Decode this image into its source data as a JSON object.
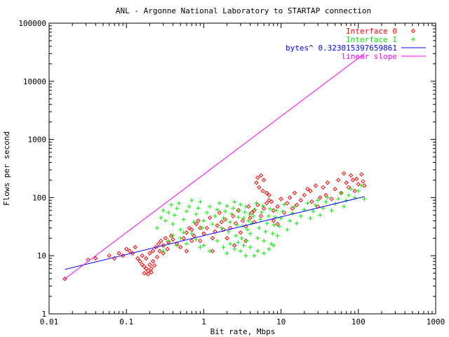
{
  "chart_data": {
    "type": "scatter",
    "title": "ANL - Argonne National Laboratory to STARTAP connection",
    "xlabel": "Bit rate, Mbps",
    "ylabel": "Flows per second",
    "x_scale": "log",
    "y_scale": "log",
    "xlim": [
      0.01,
      1000
    ],
    "ylim": [
      1,
      100000
    ],
    "x_ticks": [
      {
        "v": 0.01,
        "label": "0.01"
      },
      {
        "v": 0.1,
        "label": "0.1"
      },
      {
        "v": 1,
        "label": "1"
      },
      {
        "v": 10,
        "label": "10"
      },
      {
        "v": 100,
        "label": "100"
      },
      {
        "v": 1000,
        "label": "1000"
      }
    ],
    "y_ticks": [
      {
        "v": 1,
        "label": "1"
      },
      {
        "v": 10,
        "label": "10"
      },
      {
        "v": 100,
        "label": "100"
      },
      {
        "v": 1000,
        "label": "1000"
      },
      {
        "v": 10000,
        "label": "10000"
      },
      {
        "v": 100000,
        "label": "100000"
      }
    ],
    "grid": false,
    "legend_position": "top-right",
    "series": [
      {
        "name": "Interface 0",
        "kind": "points",
        "marker": "diamond",
        "color": "#ff0000",
        "points": [
          [
            0.016,
            4
          ],
          [
            0.032,
            8.5
          ],
          [
            0.04,
            9
          ],
          [
            0.06,
            10
          ],
          [
            0.07,
            9
          ],
          [
            0.08,
            11
          ],
          [
            0.09,
            10
          ],
          [
            0.1,
            13
          ],
          [
            0.11,
            12
          ],
          [
            0.12,
            11
          ],
          [
            0.13,
            14
          ],
          [
            0.14,
            9
          ],
          [
            0.15,
            8
          ],
          [
            0.16,
            7
          ],
          [
            0.17,
            6.5
          ],
          [
            0.18,
            6
          ],
          [
            0.19,
            5.5
          ],
          [
            0.2,
            7
          ],
          [
            0.21,
            6
          ],
          [
            0.22,
            8
          ],
          [
            0.16,
            10
          ],
          [
            0.18,
            9
          ],
          [
            0.2,
            11
          ],
          [
            0.22,
            12
          ],
          [
            0.24,
            14
          ],
          [
            0.26,
            16
          ],
          [
            0.28,
            18
          ],
          [
            0.3,
            15
          ],
          [
            0.32,
            20
          ],
          [
            0.35,
            17
          ],
          [
            0.17,
            5
          ],
          [
            0.19,
            4.8
          ],
          [
            0.21,
            5.2
          ],
          [
            0.23,
            6.8
          ],
          [
            0.25,
            9.5
          ],
          [
            0.27,
            12
          ],
          [
            0.3,
            11
          ],
          [
            0.34,
            13
          ],
          [
            0.38,
            22
          ],
          [
            0.4,
            19
          ],
          [
            0.45,
            16
          ],
          [
            0.5,
            14
          ],
          [
            0.55,
            20
          ],
          [
            0.6,
            25
          ],
          [
            0.65,
            30
          ],
          [
            0.7,
            28
          ],
          [
            0.75,
            22
          ],
          [
            0.8,
            35
          ],
          [
            0.85,
            40
          ],
          [
            0.9,
            18
          ],
          [
            1,
            24
          ],
          [
            1.1,
            30
          ],
          [
            1.2,
            45
          ],
          [
            1.3,
            20
          ],
          [
            1.4,
            26
          ],
          [
            1.5,
            33
          ],
          [
            1.6,
            55
          ],
          [
            1.7,
            38
          ],
          [
            1.8,
            28
          ],
          [
            1.9,
            42
          ],
          [
            2,
            20
          ],
          [
            2.2,
            30
          ],
          [
            2.4,
            48
          ],
          [
            2.6,
            36
          ],
          [
            2.8,
            60
          ],
          [
            3,
            25
          ],
          [
            3.2,
            40
          ],
          [
            3.5,
            32
          ],
          [
            3.8,
            70
          ],
          [
            4,
            45
          ],
          [
            4.2,
            55
          ],
          [
            4.5,
            38
          ],
          [
            4.8,
            180
          ],
          [
            5,
            220
          ],
          [
            5.2,
            150
          ],
          [
            5.5,
            240
          ],
          [
            5.8,
            130
          ],
          [
            6,
            200
          ],
          [
            6.5,
            120
          ],
          [
            7,
            90
          ],
          [
            4.5,
            60
          ],
          [
            5,
            75
          ],
          [
            5.5,
            48
          ],
          [
            6,
            65
          ],
          [
            6.5,
            80
          ],
          [
            7,
            110
          ],
          [
            7.5,
            85
          ],
          [
            8,
            60
          ],
          [
            9,
            70
          ],
          [
            10,
            95
          ],
          [
            11,
            55
          ],
          [
            12,
            80
          ],
          [
            13,
            100
          ],
          [
            14,
            65
          ],
          [
            15,
            120
          ],
          [
            16,
            75
          ],
          [
            18,
            90
          ],
          [
            20,
            110
          ],
          [
            22,
            140
          ],
          [
            24,
            130
          ],
          [
            25,
            85
          ],
          [
            28,
            160
          ],
          [
            30,
            70
          ],
          [
            32,
            100
          ],
          [
            35,
            150
          ],
          [
            38,
            110
          ],
          [
            40,
            180
          ],
          [
            45,
            95
          ],
          [
            50,
            140
          ],
          [
            55,
            200
          ],
          [
            60,
            120
          ],
          [
            65,
            260
          ],
          [
            70,
            180
          ],
          [
            75,
            150
          ],
          [
            80,
            240
          ],
          [
            85,
            200
          ],
          [
            90,
            130
          ],
          [
            95,
            210
          ],
          [
            100,
            170
          ],
          [
            110,
            250
          ],
          [
            115,
            190
          ],
          [
            120,
            160
          ],
          [
            8,
            40
          ],
          [
            9,
            35
          ],
          [
            2.5,
            15
          ],
          [
            3.5,
            18
          ],
          [
            1.3,
            12
          ],
          [
            0.9,
            30
          ],
          [
            0.7,
            18
          ],
          [
            0.6,
            12
          ]
        ]
      },
      {
        "name": "Interface 1",
        "kind": "points",
        "marker": "plus",
        "color": "#00ee00",
        "points": [
          [
            0.25,
            30
          ],
          [
            0.28,
            45
          ],
          [
            0.3,
            60
          ],
          [
            0.32,
            40
          ],
          [
            0.35,
            55
          ],
          [
            0.38,
            75
          ],
          [
            0.4,
            35
          ],
          [
            0.42,
            50
          ],
          [
            0.45,
            65
          ],
          [
            0.48,
            80
          ],
          [
            0.5,
            28
          ],
          [
            0.55,
            42
          ],
          [
            0.6,
            58
          ],
          [
            0.65,
            70
          ],
          [
            0.7,
            90
          ],
          [
            0.75,
            38
          ],
          [
            0.8,
            52
          ],
          [
            0.85,
            66
          ],
          [
            0.9,
            85
          ],
          [
            0.95,
            30
          ],
          [
            0.3,
            12
          ],
          [
            0.35,
            18
          ],
          [
            0.4,
            22
          ],
          [
            0.45,
            15
          ],
          [
            0.5,
            20
          ],
          [
            0.55,
            25
          ],
          [
            0.6,
            16
          ],
          [
            0.7,
            24
          ],
          [
            0.8,
            19
          ],
          [
            0.9,
            14
          ],
          [
            1,
            40
          ],
          [
            1.1,
            55
          ],
          [
            1.2,
            70
          ],
          [
            1.3,
            35
          ],
          [
            1.4,
            48
          ],
          [
            1.5,
            62
          ],
          [
            1.6,
            80
          ],
          [
            1.7,
            30
          ],
          [
            1.8,
            44
          ],
          [
            1.9,
            58
          ],
          [
            2,
            72
          ],
          [
            2.1,
            26
          ],
          [
            2.2,
            38
          ],
          [
            2.3,
            52
          ],
          [
            2.4,
            66
          ],
          [
            2.5,
            84
          ],
          [
            2.6,
            22
          ],
          [
            2.7,
            34
          ],
          [
            2.8,
            46
          ],
          [
            2.9,
            60
          ],
          [
            3,
            76
          ],
          [
            3.1,
            20
          ],
          [
            3.2,
            32
          ],
          [
            3.3,
            44
          ],
          [
            3.4,
            56
          ],
          [
            3.5,
            70
          ],
          [
            3.6,
            18
          ],
          [
            3.7,
            28
          ],
          [
            3.8,
            40
          ],
          [
            3.9,
            52
          ],
          [
            1,
            15
          ],
          [
            1.2,
            12
          ],
          [
            1.5,
            18
          ],
          [
            1.8,
            14
          ],
          [
            2,
            11
          ],
          [
            2.2,
            16
          ],
          [
            2.5,
            13
          ],
          [
            2.8,
            17
          ],
          [
            3,
            12
          ],
          [
            3.3,
            15
          ],
          [
            4,
            24
          ],
          [
            4.2,
            36
          ],
          [
            4.4,
            48
          ],
          [
            4.6,
            62
          ],
          [
            4.8,
            80
          ],
          [
            5,
            20
          ],
          [
            5.2,
            30
          ],
          [
            5.4,
            42
          ],
          [
            5.6,
            56
          ],
          [
            5.8,
            72
          ],
          [
            6,
            18
          ],
          [
            6.3,
            26
          ],
          [
            6.6,
            36
          ],
          [
            6.9,
            48
          ],
          [
            7.2,
            64
          ],
          [
            7.5,
            16
          ],
          [
            7.8,
            24
          ],
          [
            8.1,
            34
          ],
          [
            8.4,
            46
          ],
          [
            8.7,
            60
          ],
          [
            9,
            22
          ],
          [
            9.5,
            32
          ],
          [
            10,
            44
          ],
          [
            10.5,
            58
          ],
          [
            11,
            76
          ],
          [
            12,
            28
          ],
          [
            13,
            40
          ],
          [
            14,
            54
          ],
          [
            15,
            70
          ],
          [
            16,
            36
          ],
          [
            18,
            48
          ],
          [
            20,
            62
          ],
          [
            22,
            80
          ],
          [
            24,
            44
          ],
          [
            26,
            58
          ],
          [
            28,
            74
          ],
          [
            30,
            90
          ],
          [
            32,
            50
          ],
          [
            35,
            66
          ],
          [
            38,
            84
          ],
          [
            40,
            100
          ],
          [
            45,
            60
          ],
          [
            50,
            78
          ],
          [
            55,
            95
          ],
          [
            60,
            120
          ],
          [
            65,
            70
          ],
          [
            70,
            90
          ],
          [
            75,
            110
          ],
          [
            80,
            140
          ],
          [
            90,
            100
          ],
          [
            100,
            130
          ],
          [
            110,
            160
          ],
          [
            120,
            95
          ],
          [
            4,
            14
          ],
          [
            5,
            12
          ],
          [
            6,
            11
          ],
          [
            7,
            13
          ],
          [
            8,
            15
          ],
          [
            3.5,
            10
          ],
          [
            4.5,
            10
          ]
        ]
      },
      {
        "name": "bytes^ 0.323015397659861",
        "kind": "line",
        "color": "#0000ff",
        "points": [
          [
            0.016,
            5.8
          ],
          [
            120,
            104
          ]
        ]
      },
      {
        "name": "linear slope",
        "kind": "line",
        "color": "#ff00ff",
        "points": [
          [
            0.016,
            4
          ],
          [
            120,
            30000
          ]
        ]
      }
    ]
  }
}
